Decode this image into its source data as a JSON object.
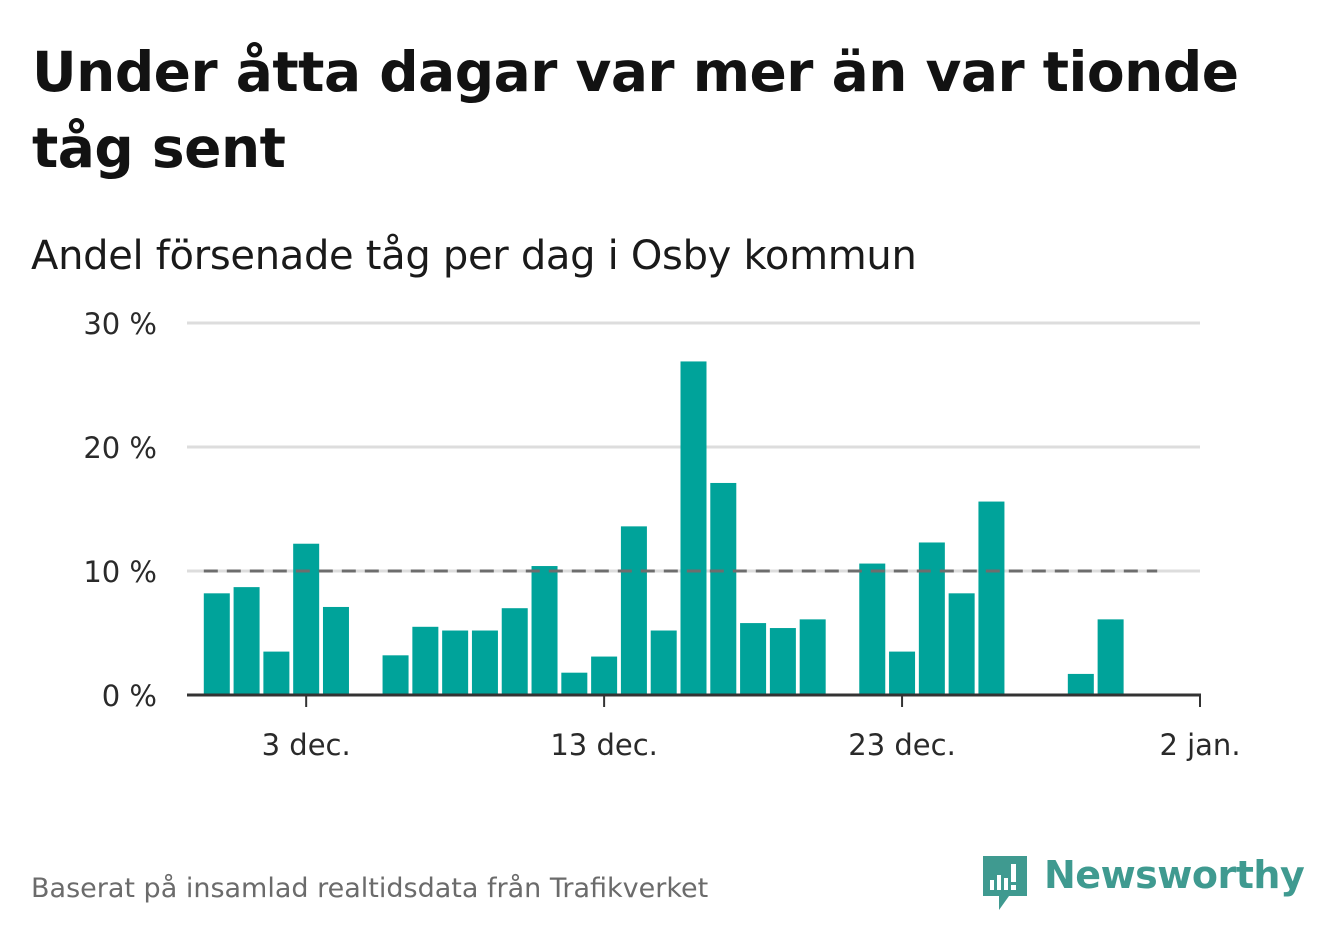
{
  "title": "Under åtta dagar var mer än var tionde tåg sent",
  "subtitle": "Andel försenade tåg per dag i Osby kommun",
  "footer": {
    "source_note": "Baserat på insamlad realtidsdata från Trafikverket",
    "brand_name": "Newsworthy",
    "brand_icon": "newsworthy-logo-icon"
  },
  "colors": {
    "bar": "#00a39a",
    "threshold_line": "#6d6d6d",
    "gridline": "#dddddd",
    "axis": "#333333",
    "brand": "#3f9a90"
  },
  "chart_data": {
    "type": "bar",
    "x_unit": "day",
    "x_start": "2023-11-29",
    "x_end": "2024-01-02",
    "x_ticks": [
      {
        "date": "2023-12-03",
        "label": "3 dec."
      },
      {
        "date": "2023-12-13",
        "label": "13 dec."
      },
      {
        "date": "2023-12-23",
        "label": "23 dec."
      },
      {
        "date": "2024-01-02",
        "label": "2 jan."
      }
    ],
    "dates": [
      "2023-11-30",
      "2023-12-01",
      "2023-12-02",
      "2023-12-03",
      "2023-12-04",
      "2023-12-05",
      "2023-12-06",
      "2023-12-07",
      "2023-12-08",
      "2023-12-09",
      "2023-12-10",
      "2023-12-11",
      "2023-12-12",
      "2023-12-13",
      "2023-12-14",
      "2023-12-15",
      "2023-12-16",
      "2023-12-17",
      "2023-12-18",
      "2023-12-19",
      "2023-12-20",
      "2023-12-21",
      "2023-12-22",
      "2023-12-23",
      "2023-12-24",
      "2023-12-25",
      "2023-12-26",
      "2023-12-27",
      "2023-12-28",
      "2023-12-29",
      "2023-12-30",
      "2023-12-31",
      "2024-01-01"
    ],
    "values": [
      8.2,
      8.7,
      3.5,
      12.2,
      7.1,
      null,
      3.2,
      5.5,
      5.2,
      5.2,
      7.0,
      10.4,
      1.8,
      3.1,
      13.6,
      5.2,
      26.9,
      17.1,
      5.8,
      5.4,
      6.1,
      null,
      10.6,
      3.5,
      12.3,
      8.2,
      15.6,
      null,
      null,
      1.7,
      6.1,
      null,
      null
    ],
    "y_ticks": [
      {
        "value": 0,
        "label": "0 %"
      },
      {
        "value": 10,
        "label": "10 %"
      },
      {
        "value": 20,
        "label": "20 %"
      },
      {
        "value": 30,
        "label": "30 %"
      }
    ],
    "ylim": [
      0,
      30
    ],
    "threshold": 10,
    "threshold_start": "2023-11-30",
    "threshold_end": "2024-01-01",
    "grid": true,
    "legend": "none"
  }
}
